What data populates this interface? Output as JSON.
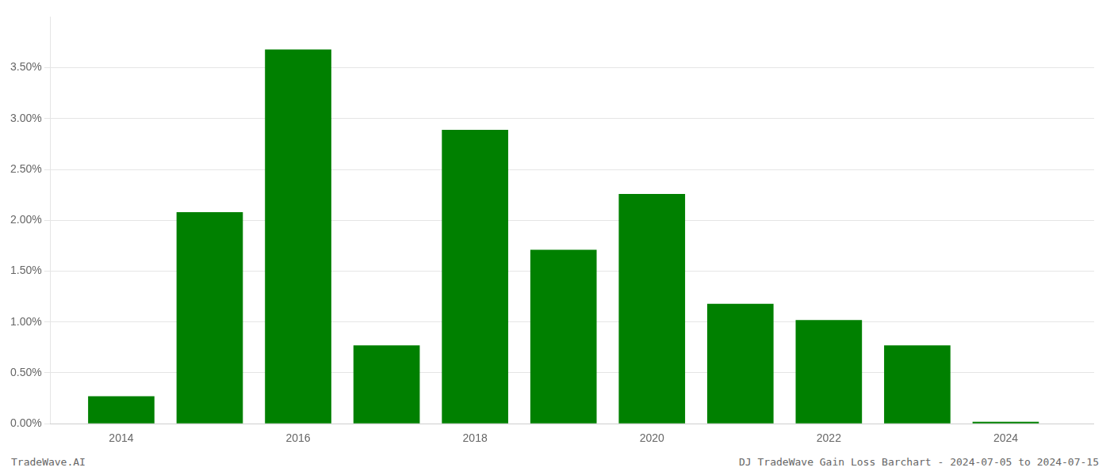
{
  "chart_data": {
    "type": "bar",
    "x": [
      2014,
      2015,
      2016,
      2017,
      2018,
      2019,
      2020,
      2021,
      2022,
      2023,
      2024
    ],
    "values": [
      0.0027,
      0.0208,
      0.0368,
      0.0077,
      0.0289,
      0.0171,
      0.0226,
      0.0118,
      0.0102,
      0.0077,
      0.0002
    ],
    "color": "#008000",
    "xlim": [
      2013.2,
      2025.0
    ],
    "xticks": [
      2014,
      2016,
      2018,
      2020,
      2022,
      2024
    ],
    "ylim": [
      0,
      0.04
    ],
    "yticks": [
      {
        "value": 0.0,
        "label": "0.00%"
      },
      {
        "value": 0.005,
        "label": "0.50%"
      },
      {
        "value": 0.01,
        "label": "1.00%"
      },
      {
        "value": 0.015,
        "label": "1.50%"
      },
      {
        "value": 0.02,
        "label": "2.00%"
      },
      {
        "value": 0.025,
        "label": "2.50%"
      },
      {
        "value": 0.03,
        "label": "3.00%"
      },
      {
        "value": 0.035,
        "label": "3.50%"
      }
    ],
    "grid": "y",
    "annotations": [
      "TradeWave.AI",
      "DJ TradeWave Gain Loss Barchart - 2024-07-05 to 2024-07-15"
    ]
  }
}
